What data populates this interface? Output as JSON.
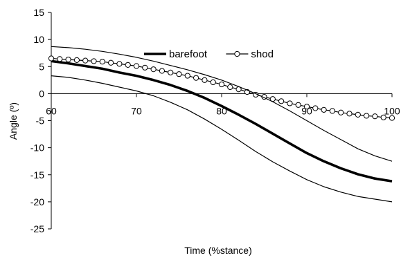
{
  "chart_data": {
    "type": "line",
    "xlabel": "Time (%stance)",
    "ylabel": "Angle (º)",
    "xlim": [
      60,
      100
    ],
    "ylim": [
      -25,
      15
    ],
    "x_ticks": [
      60,
      70,
      80,
      90,
      100
    ],
    "y_ticks": [
      15,
      10,
      5,
      0,
      -5,
      -10,
      -15,
      -20,
      -25
    ],
    "x_axis_crosses_y_at": 0,
    "grid": false,
    "legend_position": "top-center",
    "series": [
      {
        "name": "barefoot",
        "style": "thick-line",
        "x": [
          60,
          62,
          64,
          66,
          68,
          70,
          72,
          74,
          76,
          78,
          80,
          82,
          84,
          86,
          88,
          90,
          92,
          94,
          96,
          98,
          100
        ],
        "values": [
          6.0,
          5.6,
          5.1,
          4.6,
          3.9,
          3.3,
          2.5,
          1.6,
          0.5,
          -0.8,
          -2.3,
          -3.9,
          -5.6,
          -7.4,
          -9.2,
          -11.0,
          -12.5,
          -13.8,
          -14.9,
          -15.7,
          -16.2
        ]
      },
      {
        "name": "shod",
        "style": "line-open-circles",
        "x": [
          60,
          61,
          62,
          63,
          64,
          65,
          66,
          67,
          68,
          69,
          70,
          71,
          72,
          73,
          74,
          75,
          76,
          77,
          78,
          79,
          80,
          81,
          82,
          83,
          84,
          85,
          86,
          87,
          88,
          89,
          90,
          91,
          92,
          93,
          94,
          95,
          96,
          97,
          98,
          99,
          100
        ],
        "values": [
          6.5,
          6.4,
          6.3,
          6.2,
          6.1,
          6.0,
          5.9,
          5.7,
          5.5,
          5.3,
          5.1,
          4.8,
          4.5,
          4.2,
          3.9,
          3.6,
          3.3,
          2.9,
          2.5,
          2.1,
          1.7,
          1.2,
          0.8,
          0.3,
          -0.2,
          -0.6,
          -1.0,
          -1.4,
          -1.8,
          -2.1,
          -2.4,
          -2.7,
          -3.0,
          -3.2,
          -3.5,
          -3.7,
          -3.9,
          -4.1,
          -4.2,
          -4.4,
          -4.5
        ]
      },
      {
        "name": "",
        "style": "thin-line",
        "x": [
          60,
          62,
          64,
          66,
          68,
          70,
          72,
          74,
          76,
          78,
          80,
          82,
          84,
          86,
          88,
          90,
          92,
          94,
          96,
          98,
          100
        ],
        "values": [
          8.7,
          8.5,
          8.2,
          7.8,
          7.3,
          6.7,
          6.0,
          5.2,
          4.4,
          3.5,
          2.5,
          1.3,
          0.0,
          -1.5,
          -3.2,
          -5.0,
          -6.8,
          -8.5,
          -10.2,
          -11.5,
          -12.5
        ]
      },
      {
        "name": "",
        "style": "thin-line",
        "x": [
          60,
          62,
          64,
          66,
          68,
          70,
          72,
          74,
          76,
          78,
          80,
          82,
          84,
          86,
          88,
          90,
          92,
          94,
          96,
          98,
          100
        ],
        "values": [
          3.3,
          3.0,
          2.5,
          1.9,
          1.2,
          0.5,
          -0.4,
          -1.6,
          -3.0,
          -4.7,
          -6.6,
          -8.6,
          -10.7,
          -12.6,
          -14.3,
          -15.9,
          -17.2,
          -18.2,
          -19.0,
          -19.5,
          -20.0
        ]
      }
    ]
  }
}
